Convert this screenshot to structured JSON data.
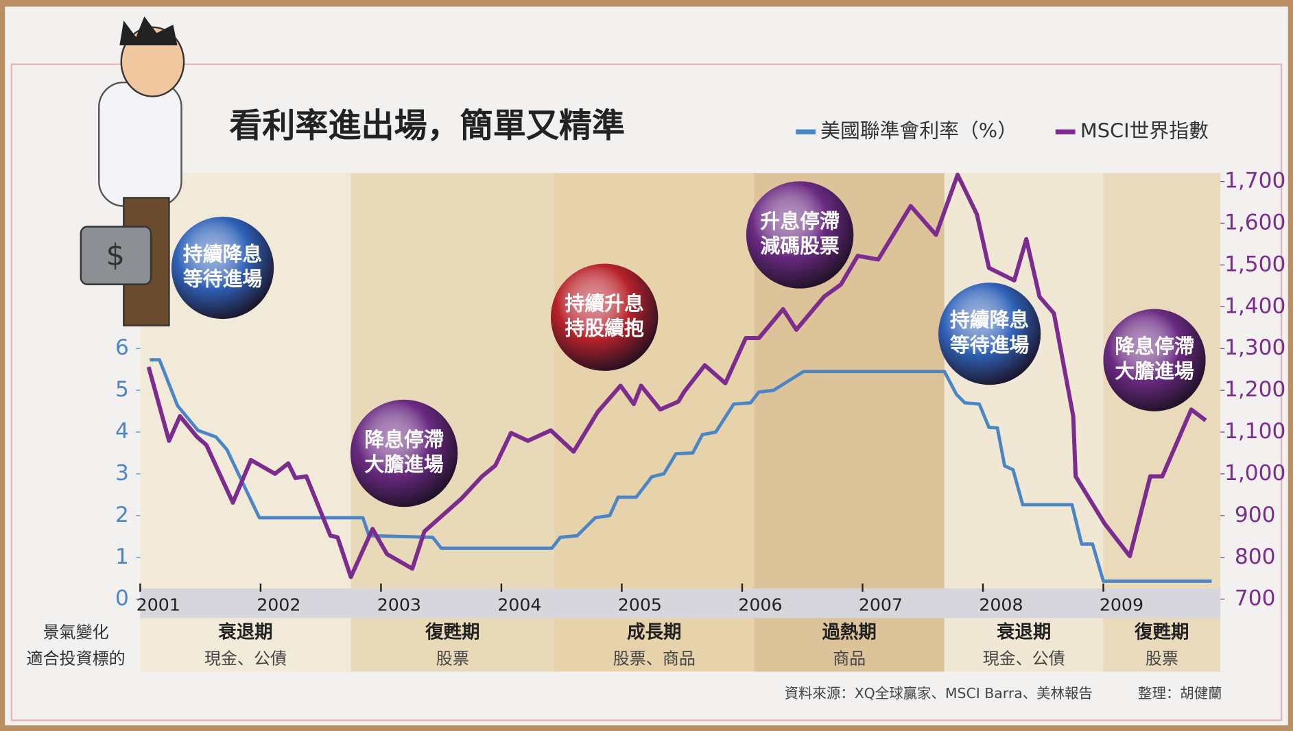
{
  "chart_data": {
    "type": "line",
    "title": "看利率進出場，簡單又精準",
    "xlim": [
      2001,
      2010
    ],
    "xticks": [
      2001,
      2002,
      2003,
      2004,
      2005,
      2006,
      2007,
      2008,
      2009
    ],
    "ylim": [
      0,
      10.2
    ],
    "yticks": [
      0,
      1,
      2,
      3,
      4,
      5,
      6
    ],
    "y2lim": [
      700,
      1720
    ],
    "y2ticks": [
      700,
      800,
      900,
      {
        "value": 1000,
        "label": "1,000"
      },
      {
        "value": 1100,
        "label": "1,100"
      },
      {
        "value": 1200,
        "label": "1,200"
      },
      {
        "value": 1300,
        "label": "1,300"
      },
      {
        "value": 1400,
        "label": "1,400"
      },
      {
        "value": 1500,
        "label": "1,500"
      },
      {
        "value": 1600,
        "label": "1,600"
      },
      {
        "value": 1700,
        "label": "1,700"
      }
    ],
    "series": [
      {
        "name": "美國聯準會利率（%）",
        "color": "#4a86c5",
        "axis": "y",
        "x": [
          2001.08,
          2001.16,
          2001.31,
          2001.48,
          2001.63,
          2001.72,
          2001.99,
          2002.85,
          2002.9,
          2003.43,
          2003.5,
          2004.42,
          2004.49,
          2004.63,
          2004.78,
          2004.9,
          2004.97,
          2005.12,
          2005.25,
          2005.35,
          2005.45,
          2005.59,
          2005.67,
          2005.78,
          2005.93,
          2006.07,
          2006.14,
          2006.26,
          2006.51,
          2007.68,
          2007.78,
          2007.85,
          2007.97,
          2008.05,
          2008.12,
          2008.18,
          2008.25,
          2008.33,
          2008.74,
          2008.82,
          2008.91,
          2009.0,
          2009.9
        ],
        "values": [
          5.73,
          5.73,
          4.63,
          4.04,
          3.88,
          3.58,
          1.95,
          1.95,
          1.52,
          1.48,
          1.22,
          1.22,
          1.48,
          1.52,
          1.95,
          2.0,
          2.44,
          2.44,
          2.93,
          3.0,
          3.48,
          3.5,
          3.94,
          4.0,
          4.67,
          4.7,
          4.96,
          5.0,
          5.45,
          5.45,
          4.9,
          4.7,
          4.67,
          4.11,
          4.1,
          3.19,
          3.1,
          2.26,
          2.26,
          1.32,
          1.32,
          0.43,
          0.43
        ]
      },
      {
        "name": "MSCI世界指數",
        "color": "#7b2c8e",
        "axis": "y2",
        "x": [
          2001.07,
          2001.24,
          2001.33,
          2001.47,
          2001.55,
          2001.77,
          2001.92,
          2002.12,
          2002.23,
          2002.29,
          2002.38,
          2002.58,
          2002.64,
          2002.75,
          2002.93,
          2003.05,
          2003.26,
          2003.36,
          2003.67,
          2003.84,
          2003.95,
          2004.08,
          2004.22,
          2004.41,
          2004.6,
          2004.8,
          2004.99,
          2005.1,
          2005.16,
          2005.32,
          2005.47,
          2005.52,
          2005.69,
          2005.86,
          2006.03,
          2006.14,
          2006.34,
          2006.45,
          2006.68,
          2006.82,
          2006.96,
          2007.13,
          2007.4,
          2007.61,
          2007.79,
          2007.95,
          2008.05,
          2008.26,
          2008.36,
          2008.47,
          2008.59,
          2008.75,
          2008.77,
          2009.01,
          2009.22,
          2009.39,
          2009.49,
          2009.73,
          2009.85
        ],
        "values": [
          1256,
          1079,
          1138,
          1089,
          1069,
          931,
          1033,
          1000,
          1025,
          990,
          994,
          852,
          848,
          753,
          868,
          808,
          773,
          862,
          941,
          994,
          1020,
          1098,
          1079,
          1104,
          1053,
          1148,
          1211,
          1167,
          1211,
          1154,
          1173,
          1197,
          1260,
          1217,
          1325,
          1325,
          1394,
          1345,
          1424,
          1453,
          1522,
          1513,
          1641,
          1572,
          1716,
          1621,
          1493,
          1463,
          1562,
          1424,
          1384,
          1138,
          994,
          881,
          803,
          994,
          994,
          1154,
          1128
        ]
      }
    ],
    "phase_row_label": "景氣變化",
    "asset_row_label": "適合投資標的",
    "phases": [
      {
        "name": "衰退期",
        "assets": "現金、公債",
        "start": 2001,
        "end": 2002.75,
        "color": "#f1ead9"
      },
      {
        "name": "復甦期",
        "assets": "股票",
        "start": 2002.75,
        "end": 2004.44,
        "color": "#e8d9b9"
      },
      {
        "name": "成長期",
        "assets": "股票、商品",
        "start": 2004.44,
        "end": 2006.1,
        "color": "#e6d2ab"
      },
      {
        "name": "過熱期",
        "assets": "商品",
        "start": 2006.1,
        "end": 2007.68,
        "color": "#dcc399"
      },
      {
        "name": "衰退期",
        "assets": "現金、公債",
        "start": 2007.68,
        "end": 2009,
        "color": "#f0e7d4"
      },
      {
        "name": "復甦期",
        "assets": "股票",
        "start": 2009,
        "end": 2010,
        "color": "#e9dabb"
      }
    ],
    "annotations": [
      {
        "lines": [
          "持續降息",
          "等待進場"
        ],
        "color": "#2f62b8"
      },
      {
        "lines": [
          "降息停滯",
          "大膽進場"
        ],
        "color": "#6a2a82"
      },
      {
        "lines": [
          "持續升息",
          "持股續抱"
        ],
        "color": "#b8222a"
      },
      {
        "lines": [
          "升息停滯",
          "減碼股票"
        ],
        "color": "#6a2a82"
      },
      {
        "lines": [
          "持續降息",
          "等待進場"
        ],
        "color": "#2f62b8"
      },
      {
        "lines": [
          "降息停滯",
          "大膽進場"
        ],
        "color": "#6a2a82"
      }
    ],
    "source": "資料來源：XQ全球贏家、MSCI Barra、美林報告",
    "credit": "整理：胡健蘭"
  }
}
